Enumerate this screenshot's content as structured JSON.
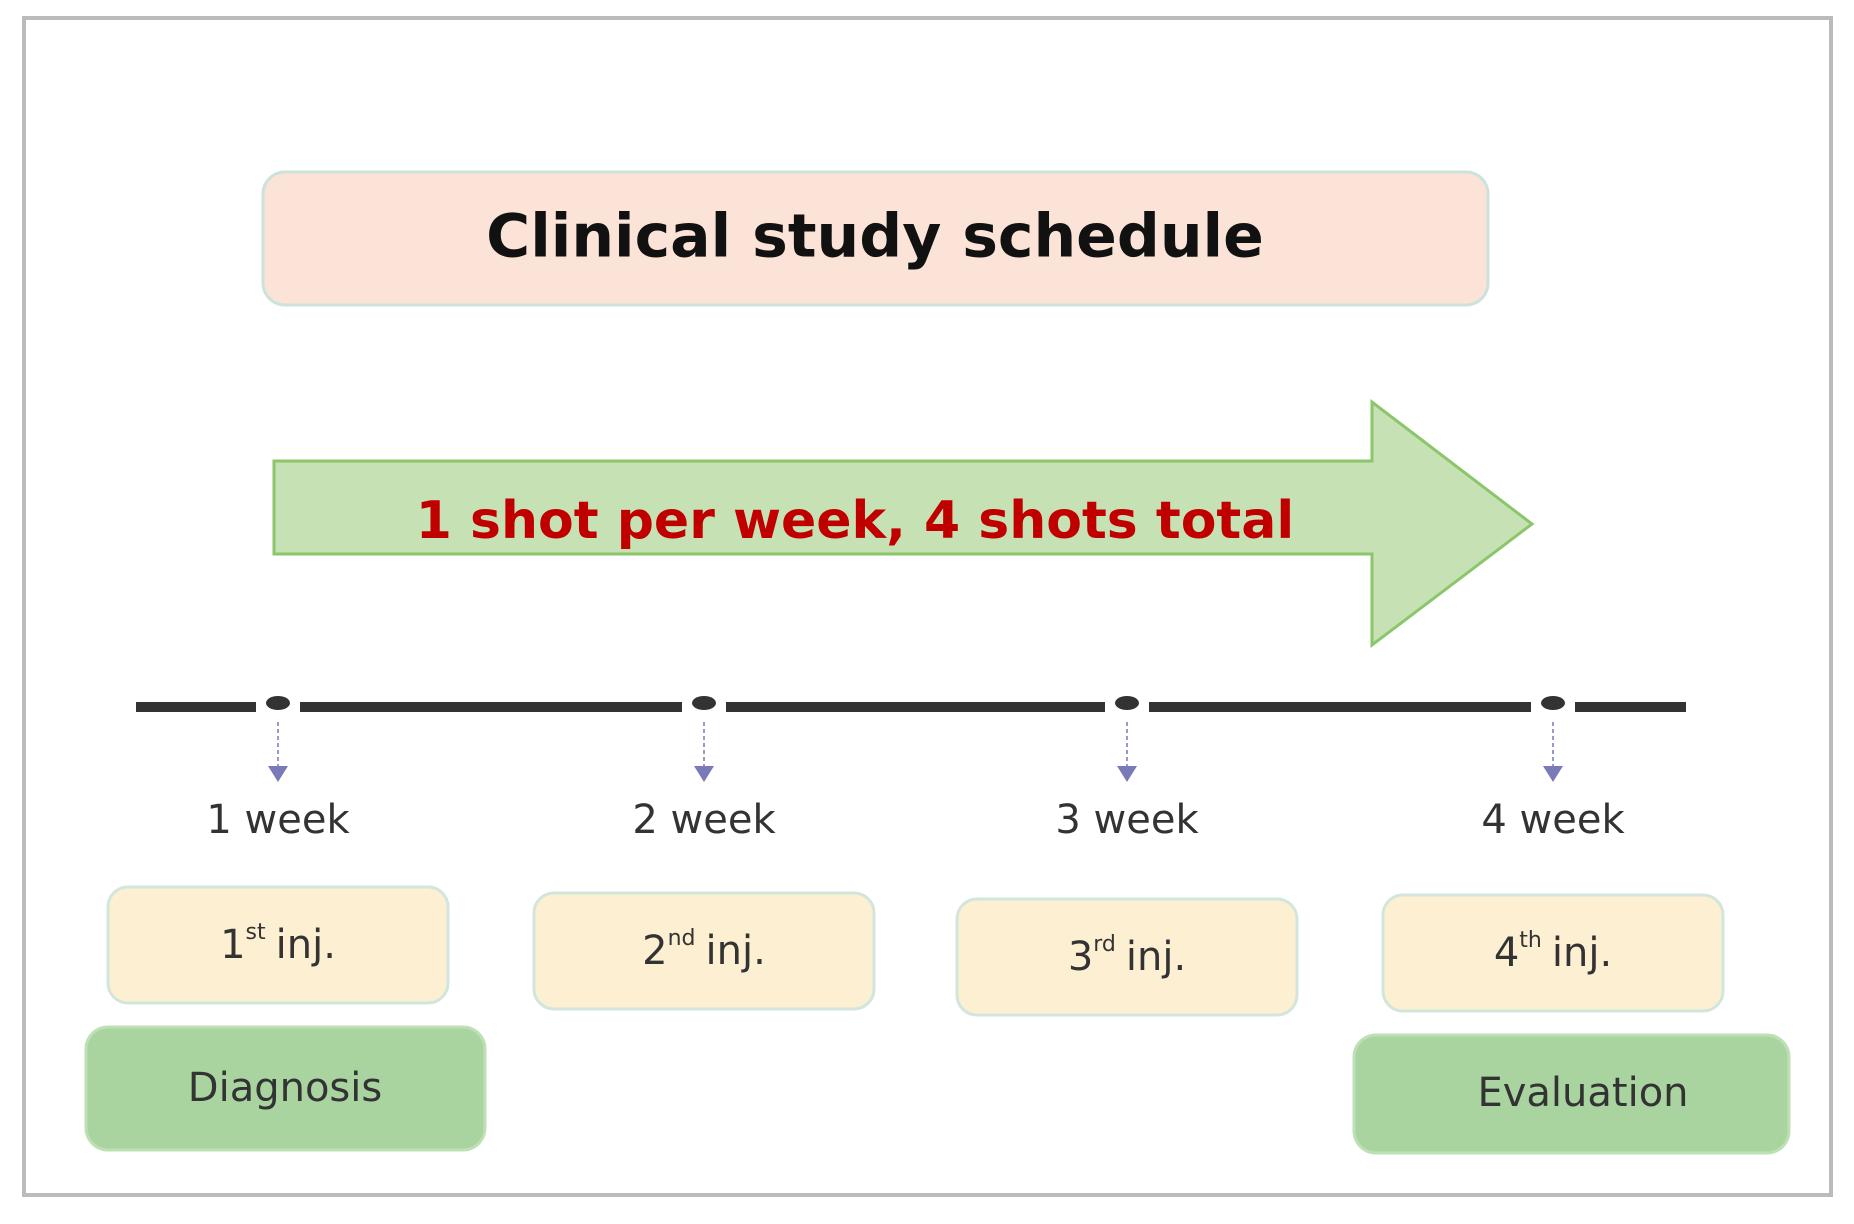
{
  "title": "Clinical  study schedule",
  "arrow_text": "1 shot per week, 4 shots total",
  "steps": [
    {
      "week": "1 week",
      "ordinal": "1",
      "suffix": "st",
      "label": "inj."
    },
    {
      "week": "2 week",
      "ordinal": "2",
      "suffix": "nd",
      "label": "inj."
    },
    {
      "week": "3 week",
      "ordinal": "3",
      "suffix": "rd",
      "label": "inj."
    },
    {
      "week": "4 week",
      "ordinal": "4",
      "suffix": "th",
      "label": "inj."
    }
  ],
  "diagnosis": "Diagnosis",
  "evaluation": "Evaluation"
}
